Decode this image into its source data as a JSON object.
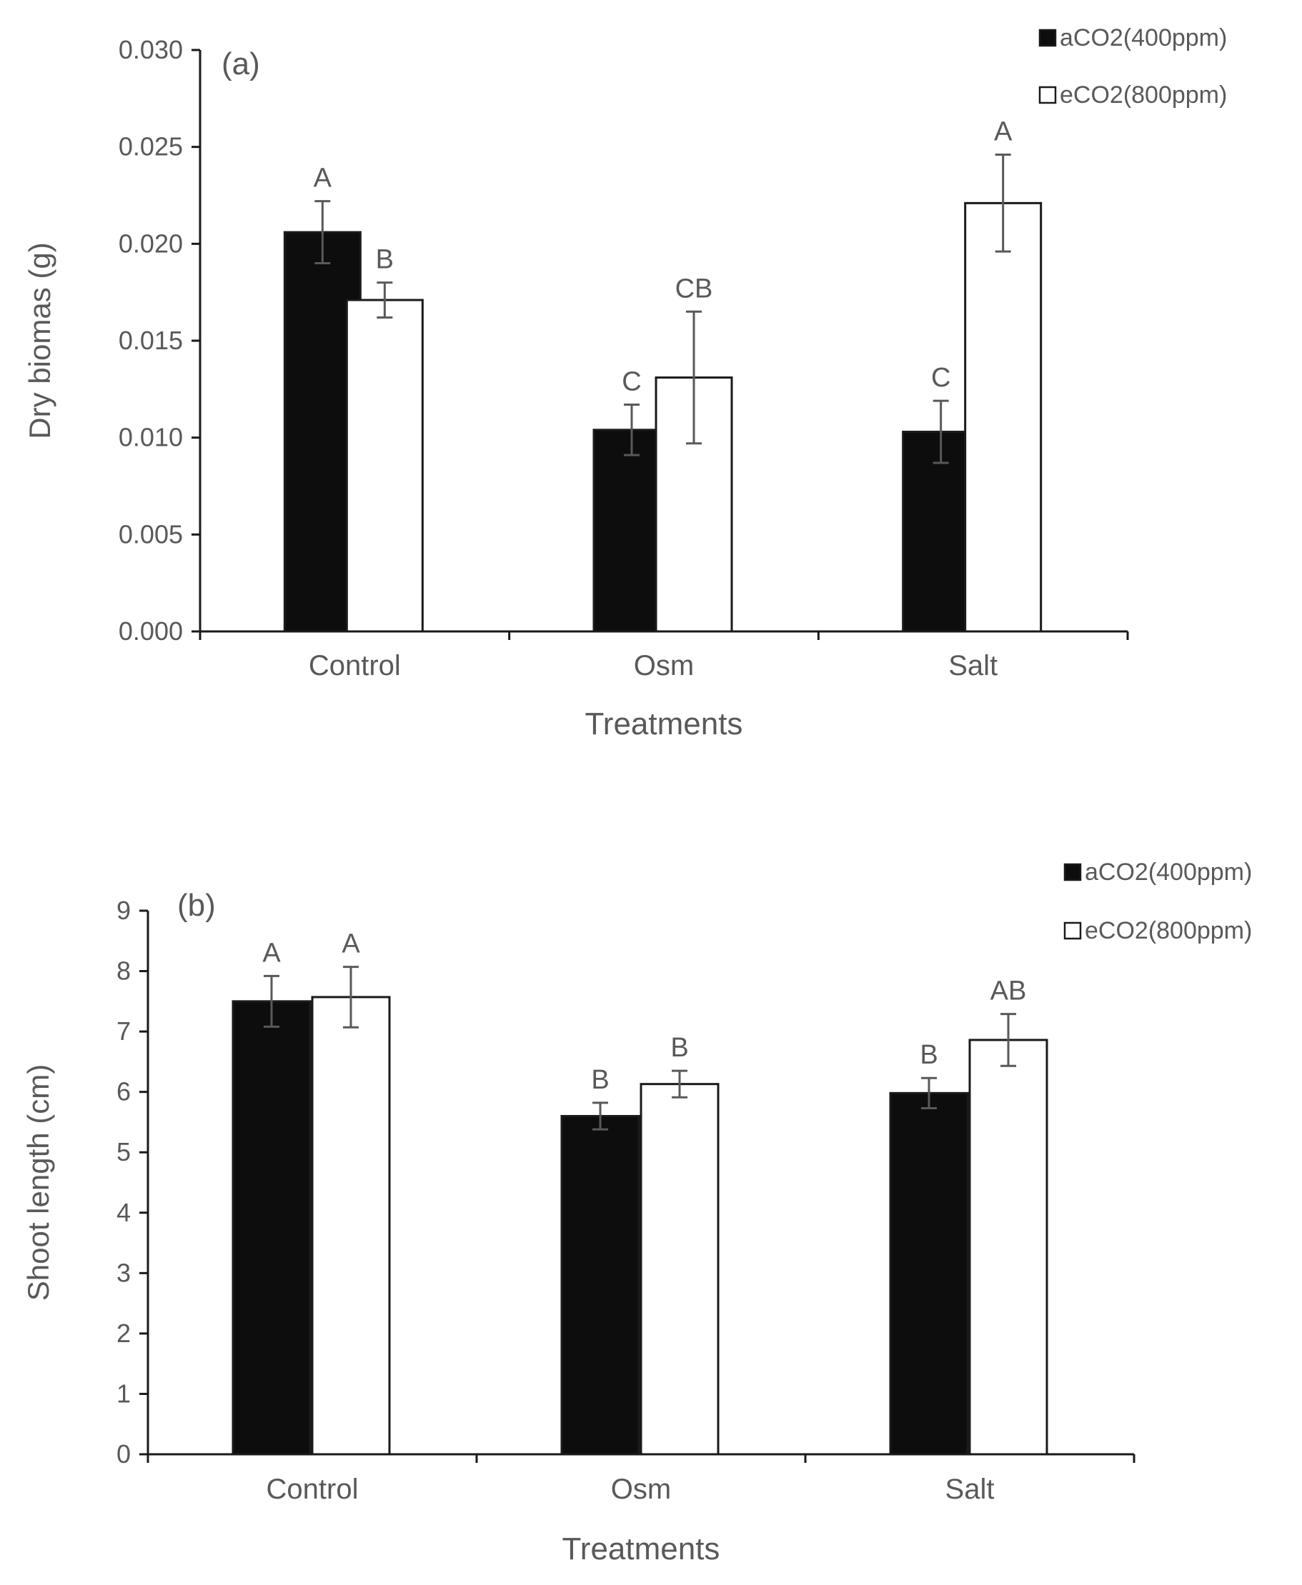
{
  "colors": {
    "axis": "#1a1a1a",
    "text": "#595959",
    "bar_a": "#0d0d0d",
    "bar_e": "#ffffff",
    "error": "#595959"
  },
  "chart_data": [
    {
      "type": "bar",
      "panel_label": "(a)",
      "xlabel": "Treatments",
      "ylabel": "Dry biomas (g)",
      "categories": [
        "Control",
        "Osm",
        "Salt"
      ],
      "ylim": [
        0,
        0.03
      ],
      "yticks": [
        "0.000",
        "0.005",
        "0.010",
        "0.015",
        "0.020",
        "0.025",
        "0.030"
      ],
      "legend_position": "top-right",
      "series": [
        {
          "name": "aCO2(400ppm)",
          "values": [
            0.0206,
            0.0104,
            0.0103
          ],
          "errors": [
            0.0016,
            0.0013,
            0.0016
          ],
          "letters": [
            "A",
            "C",
            "C"
          ]
        },
        {
          "name": "eCO2(800ppm)",
          "values": [
            0.0171,
            0.0131,
            0.0221
          ],
          "errors": [
            0.0009,
            0.0034,
            0.0025
          ],
          "letters": [
            "B",
            "CB",
            "A"
          ]
        }
      ]
    },
    {
      "type": "bar",
      "panel_label": "(b)",
      "xlabel": "Treatments",
      "ylabel": "Shoot length (cm)",
      "categories": [
        "Control",
        "Osm",
        "Salt"
      ],
      "ylim": [
        0,
        9
      ],
      "yticks": [
        "0",
        "1",
        "2",
        "3",
        "4",
        "5",
        "6",
        "7",
        "8",
        "9"
      ],
      "legend_position": "top-right",
      "series": [
        {
          "name": "aCO2(400ppm)",
          "values": [
            7.5,
            5.6,
            5.98
          ],
          "errors": [
            0.42,
            0.22,
            0.25
          ],
          "letters": [
            "A",
            "B",
            "B"
          ]
        },
        {
          "name": "eCO2(800ppm)",
          "values": [
            7.57,
            6.13,
            6.86
          ],
          "errors": [
            0.5,
            0.22,
            0.43
          ],
          "letters": [
            "A",
            "B",
            "AB"
          ]
        }
      ]
    }
  ]
}
